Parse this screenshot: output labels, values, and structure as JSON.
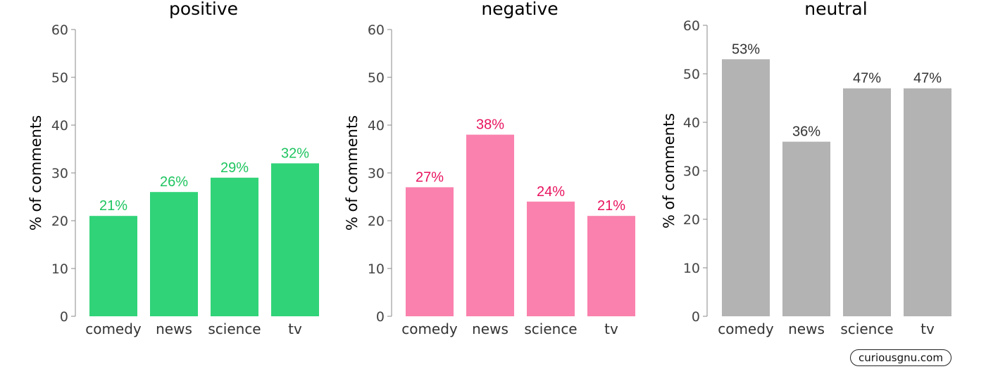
{
  "chart_data": [
    {
      "type": "bar",
      "title": "positive",
      "ylabel": "% of comments",
      "categories": [
        "comedy",
        "news",
        "science",
        "tv"
      ],
      "values": [
        21,
        26,
        29,
        32
      ],
      "value_labels": [
        "21%",
        "26%",
        "29%",
        "32%"
      ],
      "ylim": [
        0,
        60
      ],
      "yticks": [
        0,
        10,
        20,
        30,
        40,
        50,
        60
      ],
      "bar_color": "#31d378",
      "label_color": "#1ec45f"
    },
    {
      "type": "bar",
      "title": "negative",
      "ylabel": "% of comments",
      "categories": [
        "comedy",
        "news",
        "science",
        "tv"
      ],
      "values": [
        27,
        38,
        24,
        21
      ],
      "value_labels": [
        "27%",
        "38%",
        "24%",
        "21%"
      ],
      "ylim": [
        0,
        60
      ],
      "yticks": [
        0,
        10,
        20,
        30,
        40,
        50,
        60
      ],
      "bar_color": "#fa81ad",
      "label_color": "#e8125e"
    },
    {
      "type": "bar",
      "title": "neutral",
      "ylabel": "% of comments",
      "categories": [
        "comedy",
        "news",
        "science",
        "tv"
      ],
      "values": [
        53,
        36,
        47,
        47
      ],
      "value_labels": [
        "53%",
        "36%",
        "47%",
        "47%"
      ],
      "ylim": [
        0,
        60
      ],
      "yticks": [
        0,
        10,
        20,
        30,
        40,
        50,
        60
      ],
      "bar_color": "#b3b3b3",
      "label_color": "#333333"
    }
  ],
  "watermark": "curiousgnu.com"
}
